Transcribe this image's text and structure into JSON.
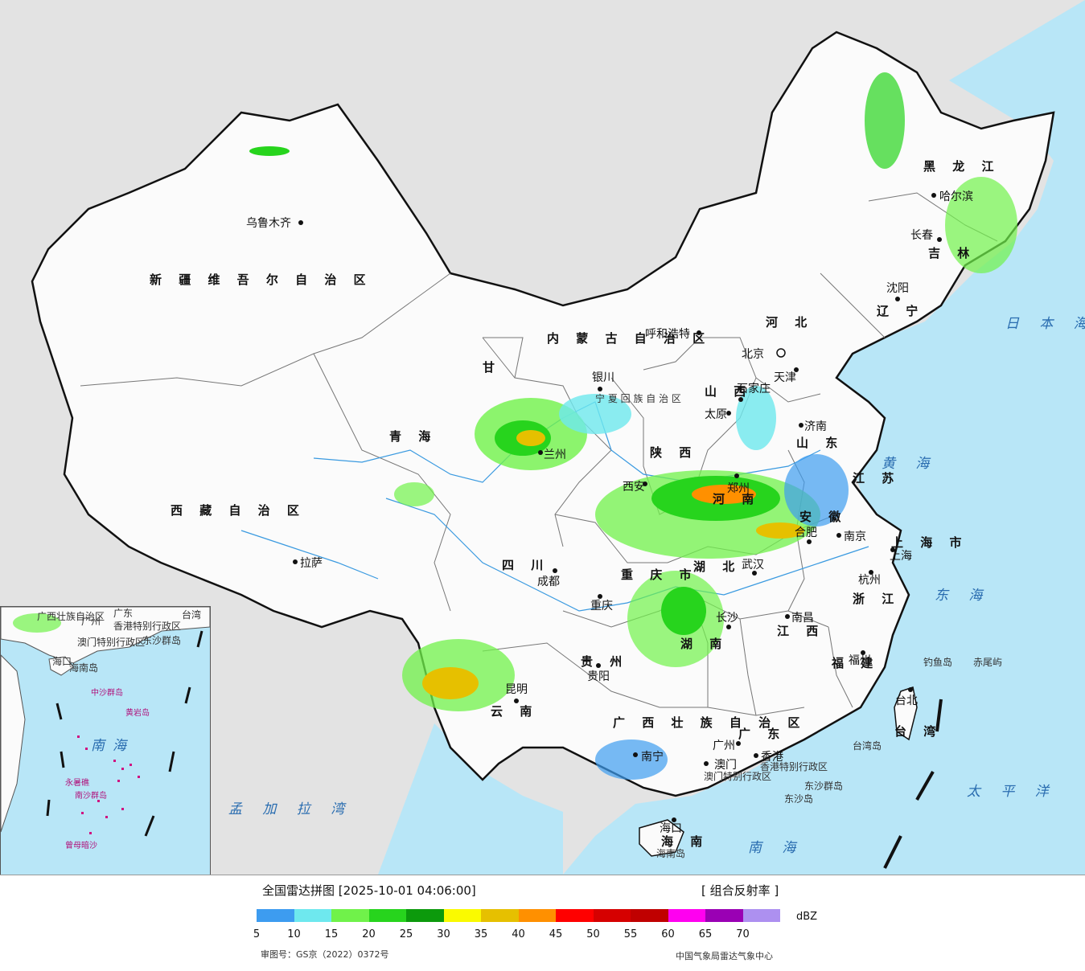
{
  "title": "全国雷达拼图 [2025-10-01 04:06:00]",
  "product": "[ 组合反射率 ]",
  "legend": {
    "unit": "dBZ",
    "colors": [
      "#3d9cf0",
      "#6ee8ee",
      "#70f24a",
      "#27d41d",
      "#0c9a0c",
      "#fafa00",
      "#e6c000",
      "#ff9000",
      "#ff0000",
      "#d60000",
      "#c00000",
      "#ff00f0",
      "#9a00b4",
      "#ad90f0"
    ],
    "ticks": [
      "5",
      "10",
      "15",
      "20",
      "25",
      "30",
      "35",
      "40",
      "45",
      "50",
      "55",
      "60",
      "65",
      "70"
    ]
  },
  "review_number": "审图号：GS京（2022）0372号",
  "organization": "中国气象局雷达气象中心",
  "map_labels": {
    "xinjiang": "新 疆 维 吾 尔 自 治 区",
    "xizang": "西 藏 自 治 区",
    "qinghai": "青 海",
    "gansu": "甘",
    "sichuan": "四 川",
    "yunnan": "云 南",
    "guizhou": "贵 州",
    "guangxi": "广 西 壮 族 自 治 区",
    "guangdong": "广 东",
    "hainan": "海 南",
    "hunan": "湖 南",
    "hubei": "湖 北",
    "henan": "河 南",
    "shaanxi": "陕 西",
    "shanxi": "山 西",
    "hebei": "河 北",
    "shandong": "山 东",
    "jiangsu": "江 苏",
    "anhui": "安 徽",
    "zhejiang": "浙 江",
    "jiangxi": "江 西",
    "fujian": "福 建",
    "taiwan": "台 湾",
    "chongqing": "重 庆 市",
    "shanghai": "上 海 市",
    "neimenggu": "内 蒙 古 自 治 区",
    "heilongjiang": "黑 龙 江",
    "jilin": "吉 林",
    "liaoning": "辽 宁",
    "ningxia": "宁 夏 回 族 自 治 区",
    "xianggang": "香港特别行政区",
    "aomen": "澳门特别行政区"
  },
  "cities": [
    "乌鲁木齐",
    "拉萨",
    "银川",
    "兰州",
    "西安",
    "成都",
    "重庆",
    "昆明",
    "贵阳",
    "南宁",
    "广州",
    "澳门",
    "香港",
    "海口",
    "长沙",
    "武汉",
    "南昌",
    "合肥",
    "南京",
    "上海",
    "杭州",
    "福州",
    "台北",
    "郑州",
    "太原",
    "石家庄",
    "济南",
    "天津",
    "北京",
    "呼和浩特",
    "沈阳",
    "长春",
    "哈尔滨"
  ],
  "sea_labels": [
    "日 本 海",
    "黄 海",
    "东 海",
    "太 平 洋",
    "南 海",
    "孟 加 拉 湾"
  ],
  "islands": [
    "钓鱼岛",
    "赤尾屿",
    "台湾岛",
    "东沙群岛",
    "东沙岛",
    "海南岛"
  ],
  "inset_labels": [
    "广西壮族自治区",
    "广东",
    "台湾",
    "广州",
    "香港特别行政区",
    "澳门特别行政区",
    "东沙群岛",
    "海南岛",
    "海口",
    "中沙群岛",
    "黄岩岛",
    "南海",
    "永暑礁",
    "南沙群岛",
    "曾母暗沙"
  ]
}
